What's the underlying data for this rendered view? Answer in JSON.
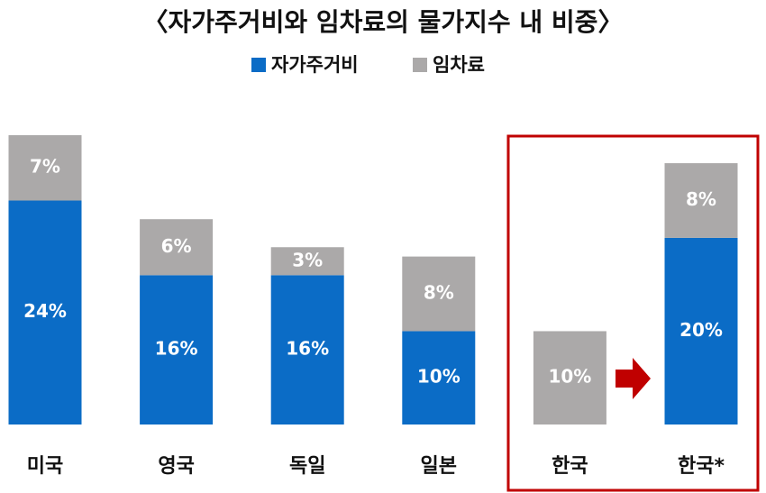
{
  "chart_data": {
    "type": "stacked-bar",
    "title": "〈자가주거비와 임차료의 물가지수 내 비중〉",
    "categories": [
      "미국",
      "영국",
      "독일",
      "일본",
      "한국",
      "한국*"
    ],
    "series": [
      {
        "name": "자가주거비",
        "color": "#0b6cc6",
        "values": [
          24,
          16,
          16,
          10,
          null,
          20
        ],
        "value_labels": [
          "24%",
          "16%",
          "16%",
          "10%",
          null,
          "20%"
        ]
      },
      {
        "name": "임차료",
        "color": "#aba9a9",
        "values": [
          7,
          6,
          3,
          8,
          10,
          8
        ],
        "value_labels": [
          "7%",
          "6%",
          "3%",
          "8%",
          "10%",
          "8%"
        ]
      }
    ],
    "legend": "top"
  }
}
